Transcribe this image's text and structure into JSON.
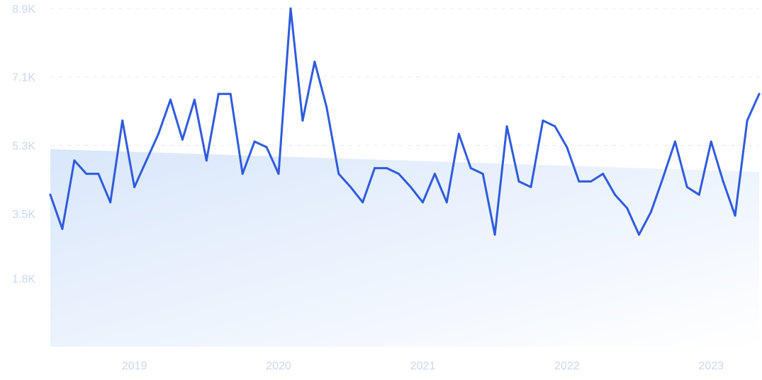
{
  "colors": {
    "line": "#2f5bdc",
    "trend_fill_start": "#d9e7fb",
    "trend_fill_end": "#ffffff",
    "grid": "#e6ebf3",
    "tick_label": "#c9d6f2"
  },
  "chart_data": {
    "type": "line",
    "title": "",
    "xlabel": "",
    "ylabel": "",
    "grid": "horizontal dashed",
    "legend": "none",
    "ylim": [
      0,
      8900
    ],
    "y_ticks": [
      {
        "value": 1800,
        "label": "1.8K"
      },
      {
        "value": 3500,
        "label": "3.5K"
      },
      {
        "value": 5300,
        "label": "5.3K"
      },
      {
        "value": 7100,
        "label": "7.1K"
      },
      {
        "value": 8900,
        "label": "8.9K"
      }
    ],
    "x_ticks": [
      "2019",
      "2020",
      "2021",
      "2022",
      "2023"
    ],
    "x_range": [
      "2018-11",
      "2023-10"
    ],
    "trend": {
      "start": 5200,
      "end": 4600
    },
    "series": [
      {
        "x": [
          "2018-11",
          "2018-12",
          "2019-01",
          "2019-02",
          "2019-03",
          "2019-04",
          "2019-05",
          "2019-06",
          "2019-07",
          "2019-08",
          "2019-09",
          "2019-10",
          "2019-11",
          "2019-12",
          "2020-01",
          "2020-02",
          "2020-03",
          "2020-04",
          "2020-05",
          "2020-06",
          "2020-07",
          "2020-08",
          "2020-09",
          "2020-10",
          "2020-11",
          "2020-12",
          "2021-01",
          "2021-02",
          "2021-03",
          "2021-04",
          "2021-05",
          "2021-06",
          "2021-07",
          "2021-08",
          "2021-09",
          "2021-10",
          "2021-11",
          "2021-12",
          "2022-01",
          "2022-02",
          "2022-03",
          "2022-04",
          "2022-05",
          "2022-06",
          "2022-07",
          "2022-08",
          "2022-09",
          "2022-10",
          "2022-11",
          "2022-12",
          "2023-01",
          "2023-02",
          "2023-03",
          "2023-04",
          "2023-05",
          "2023-06",
          "2023-07",
          "2023-08",
          "2023-09",
          "2023-10"
        ],
        "values": [
          4000,
          3100,
          4900,
          4550,
          4550,
          3800,
          5950,
          4200,
          4900,
          5600,
          6500,
          5450,
          6500,
          4900,
          6650,
          6650,
          4550,
          5400,
          5250,
          4550,
          8900,
          5950,
          7500,
          6300,
          4550,
          4200,
          3800,
          4700,
          4700,
          4550,
          4200,
          3800,
          4550,
          3800,
          5600,
          4700,
          4550,
          2950,
          5800,
          4350,
          4200,
          5950,
          5800,
          5250,
          4350,
          4350,
          4550,
          4000,
          3650,
          2950,
          3550,
          4450,
          5400,
          4200,
          4000,
          5400,
          4350,
          3450,
          5950,
          6650
        ]
      }
    ]
  }
}
